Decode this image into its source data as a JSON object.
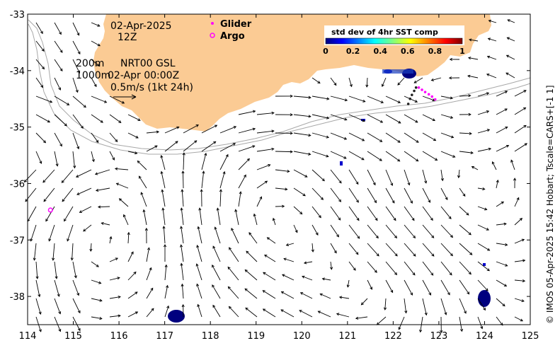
{
  "map": {
    "date": "02-Apr-2025",
    "time": "12Z",
    "depth_shallow": "200m",
    "depth_deep": "1000m",
    "product": "NRT00 GSL",
    "product_time": "02-Apr 00:00Z",
    "scale_label": "0.5m/s (1kt 24h)",
    "credit": "© IMOS 05-Apr-2025 15:42 Hobart; Tscale=CARS+[-1 1]",
    "land_color": "#fbcb94",
    "arrow_color": "#000000",
    "bathy_color": "#a8a8a8"
  },
  "legend": {
    "glider_label": "Glider",
    "argo_label": "Argo",
    "glider_color": "#ff00ff",
    "argo_color": "#ff00ff"
  },
  "colorbar": {
    "title": "std dev of 4hr SST comp",
    "tick_labels": [
      "0",
      "0.2",
      "0.4",
      "0.6",
      "0.8",
      "1"
    ],
    "colors": [
      "#00007f",
      "#0000ff",
      "#007fff",
      "#00ffff",
      "#7fff7f",
      "#ffff00",
      "#ff7f00",
      "#ff0000",
      "#7f0000"
    ]
  },
  "axes": {
    "x_ticks": [
      "114",
      "115",
      "116",
      "117",
      "118",
      "119",
      "120",
      "121",
      "122",
      "123",
      "124",
      "125"
    ],
    "y_ticks": [
      "-33",
      "-34",
      "-35",
      "-36",
      "-37",
      "-38"
    ]
  },
  "argo_floats": [
    {
      "lon": 114.5,
      "lat": -36.47
    }
  ],
  "glider_track": [
    {
      "lon": 122.33,
      "lat": -34.59
    },
    {
      "lon": 122.37,
      "lat": -34.5
    },
    {
      "lon": 122.41,
      "lat": -34.43
    },
    {
      "lon": 122.46,
      "lat": -34.36
    },
    {
      "lon": 122.5,
      "lat": -34.3
    },
    {
      "lon": 122.56,
      "lat": -34.3
    },
    {
      "lon": 122.63,
      "lat": -34.34
    },
    {
      "lon": 122.7,
      "lat": -34.38
    },
    {
      "lon": 122.78,
      "lat": -34.42
    },
    {
      "lon": 122.85,
      "lat": -34.46
    },
    {
      "lon": 122.92,
      "lat": -34.51
    }
  ]
}
